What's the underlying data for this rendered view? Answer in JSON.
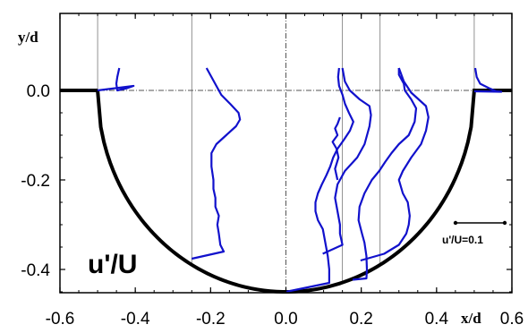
{
  "chart_data": {
    "type": "line",
    "title": "",
    "xlabel": "x/d",
    "ylabel": "y/d",
    "panel_label": "u'/U",
    "scale_bar_label": "u'/U=0.1",
    "scale_bar_value": 0.1,
    "xlim": [
      -0.6,
      0.6
    ],
    "ylim": [
      -0.46,
      0.05
    ],
    "x_ticks": [
      -0.6,
      -0.4,
      -0.2,
      0.0,
      0.2,
      0.4,
      0.6
    ],
    "x_tick_labels": [
      "-0.6",
      "-0.4",
      "-0.2",
      "0.0",
      "0.2",
      "0.4",
      "0.6"
    ],
    "y_ticks": [
      0.0,
      -0.2,
      -0.4
    ],
    "y_tick_labels": [
      "0.0",
      "-0.2",
      "-0.4"
    ],
    "grid": false,
    "colors": {
      "profile": "#1111cc",
      "wall": "#000000",
      "reference": "#777777",
      "centerline": "#555555"
    },
    "wall_profile": {
      "description_type": "semicircle",
      "radius": 0.45,
      "flat_left": [
        -0.6,
        -0.5
      ],
      "flat_right": [
        0.5,
        0.6
      ]
    },
    "stations": [
      -0.5,
      -0.25,
      0.0,
      0.15,
      0.3,
      0.5
    ],
    "series": [
      {
        "station": -0.5,
        "points": [
          [
            0.044,
            0.05
          ],
          [
            0.04,
            0.03
          ],
          [
            0.038,
            0.015
          ],
          [
            0.04,
            0.0
          ],
          [
            0.06,
            0.005
          ],
          [
            0.073,
            0.01
          ],
          [
            0.0,
            0.0
          ]
        ]
      },
      {
        "station": -0.25,
        "points": [
          [
            0.03,
            0.05
          ],
          [
            0.045,
            0.02
          ],
          [
            0.06,
            -0.01
          ],
          [
            0.078,
            -0.03
          ],
          [
            0.095,
            -0.05
          ],
          [
            0.098,
            -0.065
          ],
          [
            0.09,
            -0.08
          ],
          [
            0.07,
            -0.1
          ],
          [
            0.05,
            -0.12
          ],
          [
            0.04,
            -0.14
          ],
          [
            0.04,
            -0.17
          ],
          [
            0.044,
            -0.2
          ],
          [
            0.044,
            -0.22
          ],
          [
            0.048,
            -0.24
          ],
          [
            0.048,
            -0.26
          ],
          [
            0.055,
            -0.28
          ],
          [
            0.052,
            -0.3
          ],
          [
            0.055,
            -0.32
          ],
          [
            0.058,
            -0.345
          ],
          [
            0.065,
            -0.36
          ],
          [
            0.0,
            -0.376
          ]
        ]
      },
      {
        "station": 0.0,
        "points": [
          [
            0.108,
            0.05
          ],
          [
            0.106,
            0.03
          ],
          [
            0.108,
            0.01
          ],
          [
            0.115,
            -0.01
          ],
          [
            0.12,
            -0.03
          ],
          [
            0.128,
            -0.05
          ],
          [
            0.137,
            -0.07
          ],
          [
            0.13,
            -0.09
          ],
          [
            0.118,
            -0.11
          ],
          [
            0.105,
            -0.13
          ],
          [
            0.096,
            -0.15
          ],
          [
            0.09,
            -0.17
          ],
          [
            0.082,
            -0.19
          ],
          [
            0.073,
            -0.21
          ],
          [
            0.065,
            -0.23
          ],
          [
            0.06,
            -0.25
          ],
          [
            0.06,
            -0.27
          ],
          [
            0.065,
            -0.29
          ],
          [
            0.075,
            -0.31
          ],
          [
            0.08,
            -0.34
          ],
          [
            0.085,
            -0.37
          ],
          [
            0.088,
            -0.4
          ],
          [
            0.088,
            -0.43
          ],
          [
            0.0,
            -0.45
          ]
        ]
      },
      {
        "station": 0.15,
        "points": [
          [
            -0.005,
            -0.06
          ],
          [
            -0.01,
            -0.075
          ],
          [
            -0.015,
            -0.085
          ],
          [
            -0.01,
            -0.1
          ],
          [
            -0.02,
            -0.115
          ],
          [
            -0.012,
            -0.13
          ],
          [
            -0.008,
            -0.15
          ],
          [
            -0.015,
            -0.175
          ],
          [
            -0.01,
            -0.2
          ]
        ]
      },
      {
        "station": 0.3,
        "points": [
          [
            0.0,
            0.05
          ],
          [
            0.0,
            0.035
          ],
          [
            0.01,
            0.015
          ],
          [
            0.012,
            0.0
          ],
          [
            0.025,
            -0.02
          ],
          [
            0.035,
            -0.04
          ],
          [
            0.032,
            -0.07
          ],
          [
            0.02,
            -0.1
          ],
          [
            0.0,
            -0.12
          ],
          [
            -0.015,
            -0.14
          ],
          [
            -0.028,
            -0.16
          ],
          [
            -0.04,
            -0.18
          ],
          [
            -0.055,
            -0.2
          ],
          [
            -0.07,
            -0.23
          ],
          [
            -0.08,
            -0.26
          ],
          [
            -0.082,
            -0.29
          ],
          [
            -0.075,
            -0.32
          ],
          [
            -0.07,
            -0.34
          ],
          [
            -0.066,
            -0.37
          ],
          [
            -0.065,
            -0.4
          ],
          [
            -0.066,
            -0.42
          ],
          [
            -0.094,
            -0.423
          ]
        ]
      },
      {
        "station": 0.15,
        "points": [
          [
            0.0,
            0.05
          ],
          [
            0.005,
            0.02
          ],
          [
            0.015,
            0.0
          ],
          [
            0.035,
            -0.02
          ],
          [
            0.055,
            -0.035
          ],
          [
            0.058,
            -0.055
          ],
          [
            0.055,
            -0.08
          ],
          [
            0.045,
            -0.12
          ],
          [
            0.03,
            -0.15
          ],
          [
            0.005,
            -0.18
          ],
          [
            -0.01,
            -0.21
          ],
          [
            -0.015,
            -0.24
          ],
          [
            -0.01,
            -0.27
          ],
          [
            -0.005,
            -0.3
          ],
          [
            -0.005,
            -0.32
          ],
          [
            0.0,
            -0.345
          ],
          [
            -0.04,
            -0.365
          ]
        ]
      },
      {
        "station": 0.3,
        "points": [
          [
            0.0,
            0.05
          ],
          [
            0.01,
            0.02
          ],
          [
            0.025,
            -0.005
          ],
          [
            0.04,
            -0.02
          ],
          [
            0.055,
            -0.035
          ],
          [
            0.06,
            -0.06
          ],
          [
            0.055,
            -0.09
          ],
          [
            0.045,
            -0.12
          ],
          [
            0.025,
            -0.15
          ],
          [
            0.008,
            -0.18
          ],
          [
            0.0,
            -0.2
          ],
          [
            0.008,
            -0.23
          ],
          [
            0.018,
            -0.25
          ],
          [
            0.022,
            -0.28
          ],
          [
            0.02,
            -0.3
          ],
          [
            0.015,
            -0.32
          ],
          [
            0.0,
            -0.345
          ],
          [
            -0.03,
            -0.365
          ],
          [
            -0.078,
            -0.38
          ]
        ]
      },
      {
        "station": 0.5,
        "points": [
          [
            0.002,
            0.05
          ],
          [
            0.005,
            0.03
          ],
          [
            0.012,
            0.015
          ],
          [
            0.03,
            0.005
          ],
          [
            0.045,
            -0.002
          ],
          [
            0.055,
            -0.003
          ],
          [
            0.0,
            -0.002
          ]
        ]
      }
    ]
  }
}
